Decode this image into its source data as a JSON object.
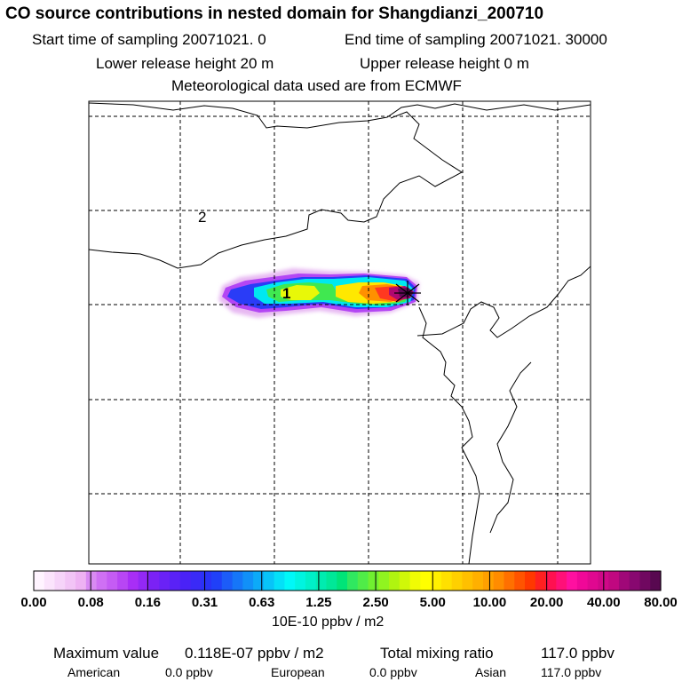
{
  "header": {
    "title": "CO  source contributions in nested domain for Shangdianzi_200710",
    "start_time": "Start time of sampling 20071021.     0",
    "end_time": "End time of sampling 20071021. 30000",
    "lower_height": "Lower release height   20 m",
    "upper_height": "Upper release height    0 m",
    "met_data": "Meteorological data used are from ECMWF"
  },
  "map": {
    "region_labels": [
      "1",
      "2"
    ],
    "receptor_marker": "star-cross-icon"
  },
  "colorbar": {
    "tick_labels": [
      "0.00",
      "0.08",
      "0.16",
      "0.31",
      "0.63",
      "1.25",
      "2.50",
      "5.00",
      "10.00",
      "20.00",
      "40.00",
      "80.00"
    ],
    "units": "10E-10 ppbv / m2",
    "colors": [
      "#fff4ff",
      "#fbe4fc",
      "#f6d4f9",
      "#f2c4f6",
      "#eeb2f3",
      "#d98af3",
      "#cf70f4",
      "#c55cf4",
      "#b846f4",
      "#a82ef6",
      "#9328f5",
      "#7b22f5",
      "#6a22f6",
      "#5a22f6",
      "#4a22f7",
      "#3a2af7",
      "#2a32f7",
      "#2040f8",
      "#1c5cf8",
      "#1676f8",
      "#1190f8",
      "#0caaf8",
      "#08c4f8",
      "#04e0f8",
      "#00f8f8",
      "#00f4e0",
      "#00f0c8",
      "#00ecb0",
      "#00e898",
      "#00e478",
      "#30e860",
      "#50ec48",
      "#70f030",
      "#90f420",
      "#b0f410",
      "#d0f808",
      "#f0fc04",
      "#ffff00",
      "#fff000",
      "#ffe000",
      "#ffd000",
      "#ffc000",
      "#ffb000",
      "#ffa000",
      "#ff8c00",
      "#ff7000",
      "#ff5400",
      "#ff3800",
      "#ff2020",
      "#ff1050",
      "#ff1078",
      "#ff10a0",
      "#f00898",
      "#e00890",
      "#d00888",
      "#c00880",
      "#a00878",
      "#880870",
      "#700860",
      "#580850"
    ]
  },
  "footer": {
    "max_label": "Maximum value",
    "max_value": "0.118E-07 ppbv / m2",
    "total_label": "Total mixing ratio",
    "total_value": "117.0 ppbv",
    "sources": [
      {
        "name": "American",
        "value": "0.0 ppbv"
      },
      {
        "name": "European",
        "value": "0.0 ppbv"
      },
      {
        "name": "Asian",
        "value": "117.0 ppbv"
      }
    ]
  }
}
